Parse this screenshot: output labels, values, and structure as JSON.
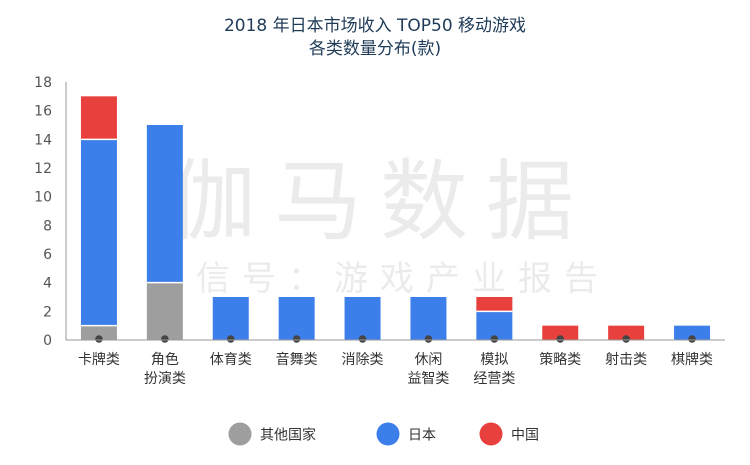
{
  "title_line1": "2018 年日本市场收入 TOP50 移动游戏",
  "title_line2": "各类数量分布(款)",
  "watermark_line1": "伽马数据",
  "watermark_line2": "微信号：游戏产业报告",
  "colors": {
    "other": "#9e9e9e",
    "japan": "#3d7fea",
    "china": "#e8403d",
    "axis": "#999999",
    "dot": "#444444"
  },
  "chart_data": {
    "type": "bar",
    "stacked": true,
    "title": "2018 年日本市场收入 TOP50 移动游戏各类数量分布(款)",
    "categories": [
      [
        "卡牌类"
      ],
      [
        "角色",
        "扮演类"
      ],
      [
        "体育类"
      ],
      [
        "音舞类"
      ],
      [
        "消除类"
      ],
      [
        "休闲",
        "益智类"
      ],
      [
        "模拟",
        "经营类"
      ],
      [
        "策略类"
      ],
      [
        "射击类"
      ],
      [
        "棋牌类"
      ]
    ],
    "series": [
      {
        "name": "其他国家",
        "key": "other",
        "values": [
          1,
          4,
          0,
          0,
          0,
          0,
          0,
          0,
          0,
          0
        ]
      },
      {
        "name": "日本",
        "key": "japan",
        "values": [
          13,
          11,
          3,
          3,
          3,
          3,
          2,
          0,
          0,
          1
        ]
      },
      {
        "name": "中国",
        "key": "china",
        "values": [
          3,
          0,
          0,
          0,
          0,
          0,
          1,
          1,
          1,
          0
        ]
      }
    ],
    "ylim": [
      0,
      18
    ],
    "yticks": [
      0,
      2,
      4,
      6,
      8,
      10,
      12,
      14,
      16,
      18
    ],
    "legend_position": "bottom"
  }
}
